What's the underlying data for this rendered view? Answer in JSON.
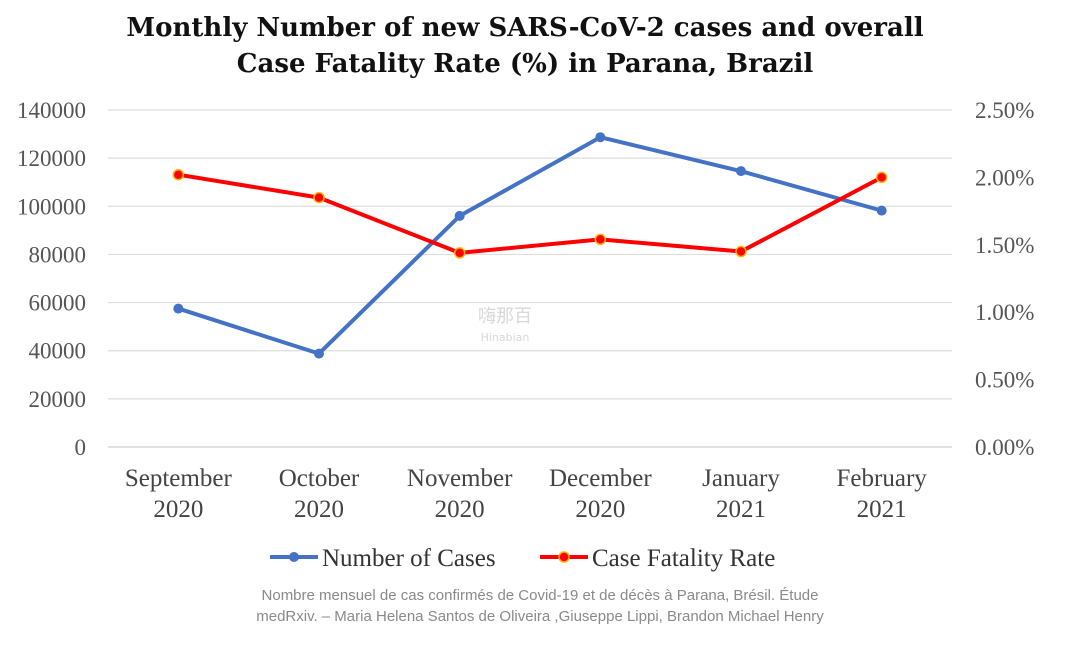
{
  "chart_data": {
    "type": "line",
    "title_lines": [
      "Monthly Number of new SARS-CoV-2 cases and overall",
      "Case Fatality Rate (%) in Parana, Brazil"
    ],
    "categories": [
      [
        "September",
        "2020"
      ],
      [
        "October",
        "2020"
      ],
      [
        "November",
        "2020"
      ],
      [
        "December",
        "2020"
      ],
      [
        "January",
        "2021"
      ],
      [
        "February",
        "2021"
      ]
    ],
    "y_left": {
      "min": 0,
      "max": 140000,
      "ticks": [
        "0",
        "20000",
        "40000",
        "60000",
        "80000",
        "100000",
        "120000",
        "140000"
      ],
      "tick_values": [
        0,
        20000,
        40000,
        60000,
        80000,
        100000,
        120000,
        140000
      ]
    },
    "y_right": {
      "min": 0,
      "max": 2.5,
      "ticks": [
        "0.00%",
        "0.50%",
        "1.00%",
        "1.50%",
        "2.00%",
        "2.50%"
      ],
      "tick_values": [
        0,
        0.5,
        1.0,
        1.5,
        2.0,
        2.5
      ]
    },
    "grid": true,
    "legend_position": "bottom",
    "series": [
      {
        "name": "Number of Cases",
        "axis": "left",
        "color": "#4472c4",
        "values": [
          57500,
          38800,
          96000,
          128700,
          114600,
          98200
        ]
      },
      {
        "name": "Case Fatality Rate",
        "axis": "right",
        "color": "#ff0000",
        "values": [
          2.02,
          1.85,
          1.44,
          1.54,
          1.45,
          2.0
        ]
      }
    ]
  },
  "caption_lines": [
    "Nombre mensuel de cas confirmés de Covid-19 et de décès à Parana, Brésil. Étude",
    "medRxiv. – Maria Helena Santos de Oliveira ,Giuseppe Lippi, Brandon Michael Henry"
  ],
  "watermark": {
    "main": "嗨那百",
    "sub": "Hinabian"
  }
}
